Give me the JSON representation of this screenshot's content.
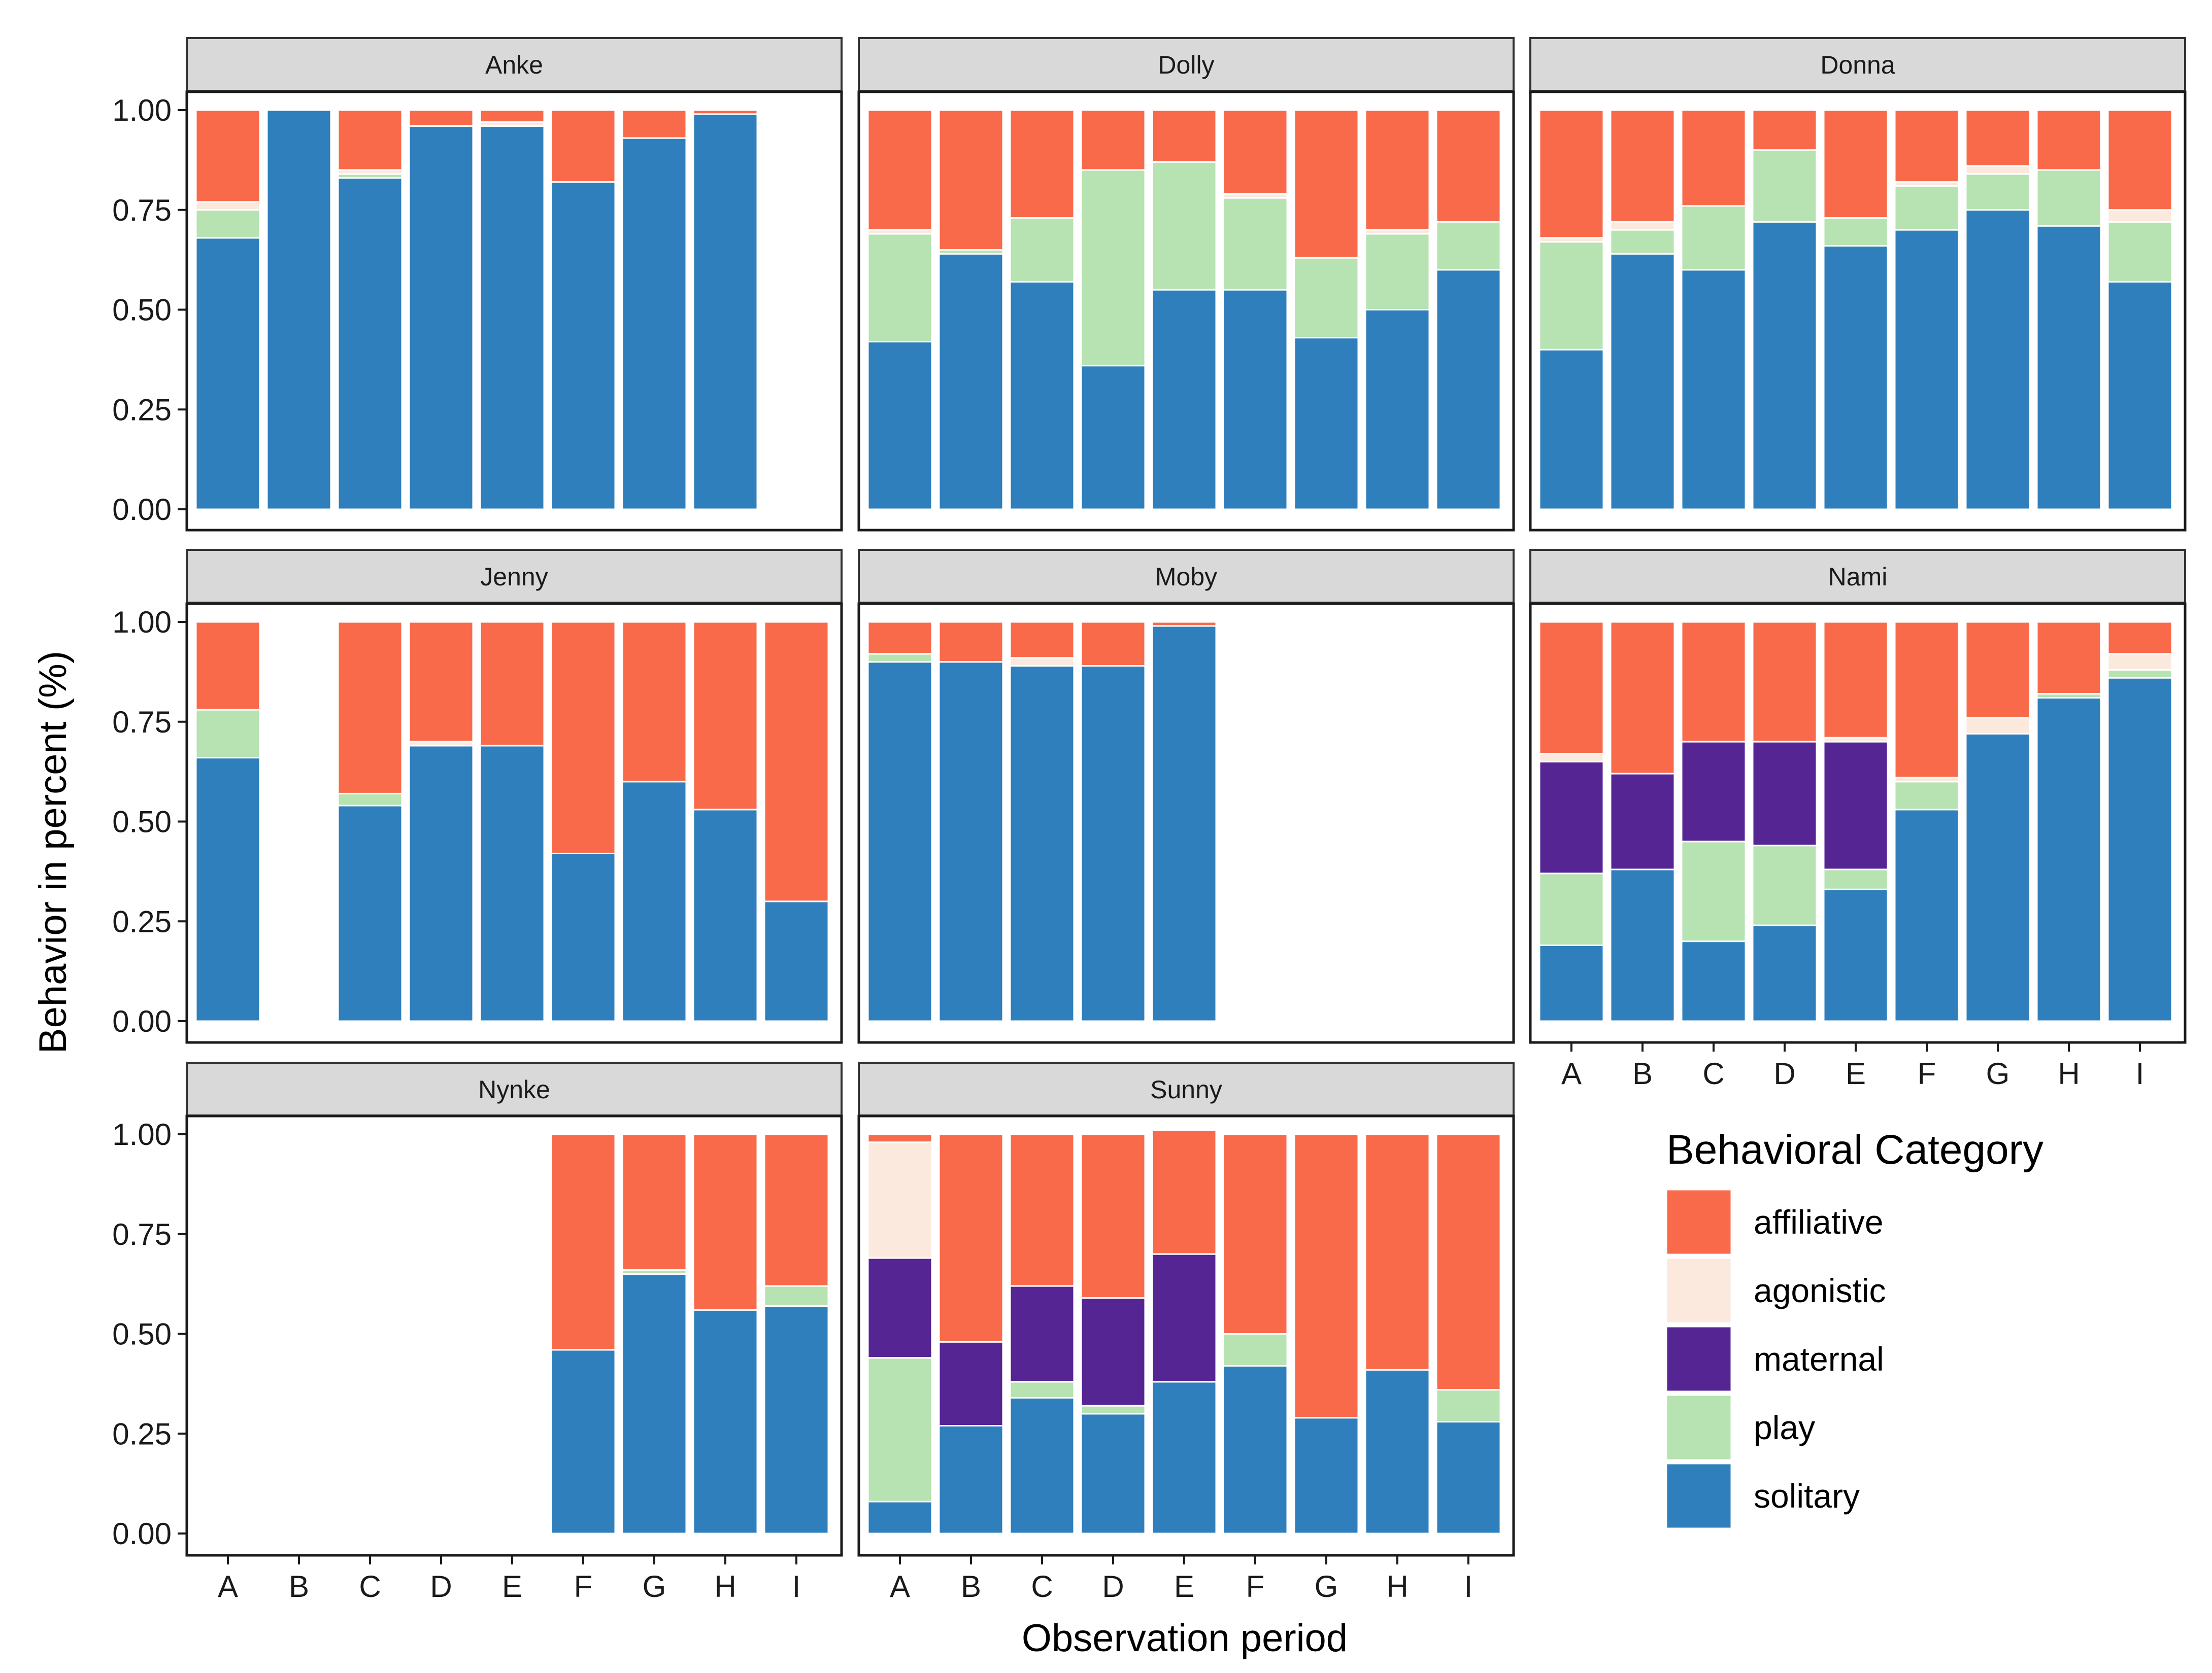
{
  "chart_data": {
    "type": "bar",
    "stacked": true,
    "xlabel": "Observation period",
    "ylabel": "Behavior in percent (%)",
    "ylim": [
      0,
      1
    ],
    "yticks": [
      "0.00",
      "0.25",
      "0.50",
      "0.75",
      "1.00"
    ],
    "categories": [
      "A",
      "B",
      "C",
      "D",
      "E",
      "F",
      "G",
      "H",
      "I"
    ],
    "category_labels": [
      "A",
      "B",
      "C",
      "D",
      "E",
      "F",
      "G",
      "H",
      "I"
    ],
    "legend": {
      "title": "Behavioral Category",
      "entries": [
        {
          "key": "affiliative",
          "label": "affiliative",
          "color": "#F96A4B"
        },
        {
          "key": "agonistic",
          "label": "agonistic",
          "color": "#FCE9DD"
        },
        {
          "key": "maternal",
          "label": "maternal",
          "color": "#552594"
        },
        {
          "key": "play",
          "label": "play",
          "color": "#B7E2B1"
        },
        {
          "key": "solitary",
          "label": "solitary",
          "color": "#2F7FBC"
        }
      ]
    },
    "stack_order": [
      "solitary",
      "play",
      "maternal",
      "agonistic",
      "affiliative"
    ],
    "panels": [
      {
        "name": "Anke",
        "series": {
          "solitary": [
            0.68,
            1.0,
            0.83,
            0.96,
            0.96,
            0.82,
            0.93,
            0.99,
            null
          ],
          "play": [
            0.07,
            0.0,
            0.01,
            0.0,
            0.0,
            0.0,
            0.0,
            0.0,
            null
          ],
          "maternal": [
            0.0,
            0.0,
            0.0,
            0.0,
            0.0,
            0.0,
            0.0,
            0.0,
            null
          ],
          "agonistic": [
            0.02,
            0.0,
            0.01,
            0.0,
            0.01,
            0.0,
            0.0,
            0.0,
            null
          ],
          "affiliative": [
            0.23,
            0.0,
            0.15,
            0.04,
            0.03,
            0.18,
            0.07,
            0.01,
            null
          ]
        }
      },
      {
        "name": "Dolly",
        "series": {
          "solitary": [
            0.42,
            0.64,
            0.57,
            0.36,
            0.55,
            0.55,
            0.43,
            0.5,
            0.6
          ],
          "play": [
            0.27,
            0.01,
            0.16,
            0.49,
            0.32,
            0.23,
            0.2,
            0.19,
            0.12
          ],
          "maternal": [
            0,
            0,
            0,
            0,
            0,
            0,
            0,
            0,
            0
          ],
          "agonistic": [
            0.01,
            0.0,
            0.0,
            0.0,
            0.0,
            0.01,
            0.0,
            0.01,
            0.0
          ],
          "affiliative": [
            0.3,
            0.35,
            0.27,
            0.15,
            0.13,
            0.21,
            0.37,
            0.3,
            0.28
          ]
        }
      },
      {
        "name": "Donna",
        "series": {
          "solitary": [
            0.4,
            0.64,
            0.6,
            0.72,
            0.66,
            0.7,
            0.75,
            0.71,
            0.57
          ],
          "play": [
            0.27,
            0.06,
            0.16,
            0.18,
            0.07,
            0.11,
            0.09,
            0.14,
            0.15
          ],
          "maternal": [
            0,
            0,
            0,
            0,
            0,
            0,
            0,
            0,
            0
          ],
          "agonistic": [
            0.01,
            0.02,
            0.0,
            0.0,
            0.0,
            0.01,
            0.02,
            0.0,
            0.03
          ],
          "affiliative": [
            0.32,
            0.28,
            0.24,
            0.1,
            0.27,
            0.18,
            0.14,
            0.15,
            0.25
          ]
        }
      },
      {
        "name": "Jenny",
        "series": {
          "solitary": [
            0.66,
            null,
            0.54,
            0.69,
            0.69,
            0.42,
            0.6,
            0.53,
            0.3
          ],
          "play": [
            0.12,
            null,
            0.03,
            0.0,
            0.0,
            0.0,
            0.0,
            0.0,
            0.0
          ],
          "maternal": [
            0.0,
            null,
            0,
            0,
            0,
            0,
            0,
            0,
            0
          ],
          "agonistic": [
            0.0,
            null,
            0.0,
            0.01,
            0.0,
            0.0,
            0.0,
            0.0,
            0.0
          ],
          "affiliative": [
            0.22,
            null,
            0.43,
            0.3,
            0.31,
            0.58,
            0.4,
            0.47,
            0.7
          ]
        }
      },
      {
        "name": "Moby",
        "series": {
          "solitary": [
            0.9,
            0.9,
            0.89,
            0.89,
            0.99,
            null,
            null,
            null,
            null
          ],
          "play": [
            0.02,
            0.0,
            0.0,
            0.0,
            0.0,
            null,
            null,
            null,
            null
          ],
          "maternal": [
            0,
            0,
            0,
            0,
            0,
            null,
            null,
            null,
            null
          ],
          "agonistic": [
            0.0,
            0.0,
            0.02,
            0.0,
            0.0,
            null,
            null,
            null,
            null
          ],
          "affiliative": [
            0.08,
            0.1,
            0.09,
            0.11,
            0.01,
            null,
            null,
            null,
            null
          ]
        }
      },
      {
        "name": "Nami",
        "series": {
          "solitary": [
            0.19,
            0.38,
            0.2,
            0.24,
            0.33,
            0.53,
            0.72,
            0.81,
            0.86
          ],
          "play": [
            0.18,
            0.0,
            0.25,
            0.2,
            0.05,
            0.07,
            0.0,
            0.01,
            0.02
          ],
          "maternal": [
            0.28,
            0.24,
            0.25,
            0.26,
            0.32,
            0.0,
            0.0,
            0.0,
            0.0
          ],
          "agonistic": [
            0.02,
            0.0,
            0.0,
            0.0,
            0.01,
            0.01,
            0.04,
            0.0,
            0.04
          ],
          "affiliative": [
            0.33,
            0.38,
            0.3,
            0.3,
            0.29,
            0.39,
            0.24,
            0.18,
            0.08
          ]
        }
      },
      {
        "name": "Nynke",
        "series": {
          "solitary": [
            null,
            null,
            null,
            null,
            null,
            0.46,
            0.65,
            0.56,
            0.57
          ],
          "play": [
            null,
            null,
            null,
            null,
            null,
            0.0,
            0.01,
            0.0,
            0.05
          ],
          "maternal": [
            null,
            null,
            null,
            null,
            null,
            0,
            0,
            0,
            0
          ],
          "agonistic": [
            null,
            null,
            null,
            null,
            null,
            0.0,
            0.0,
            0.0,
            0.0
          ],
          "affiliative": [
            null,
            null,
            null,
            null,
            null,
            0.54,
            0.34,
            0.44,
            0.38
          ]
        }
      },
      {
        "name": "Sunny",
        "series": {
          "solitary": [
            0.08,
            0.27,
            0.34,
            0.3,
            0.38,
            0.42,
            0.29,
            0.41,
            0.28
          ],
          "play": [
            0.36,
            0.0,
            0.04,
            0.02,
            0.0,
            0.08,
            0.0,
            0.0,
            0.08
          ],
          "maternal": [
            0.25,
            0.21,
            0.24,
            0.27,
            0.32,
            0.0,
            0.0,
            0.0,
            0.0
          ],
          "agonistic": [
            0.29,
            0.0,
            0.0,
            0.0,
            0.0,
            0.0,
            0.0,
            0.0,
            0.0
          ],
          "affiliative": [
            0.02,
            0.52,
            0.38,
            0.41,
            0.31,
            0.5,
            0.71,
            0.59,
            0.64
          ]
        }
      }
    ]
  }
}
